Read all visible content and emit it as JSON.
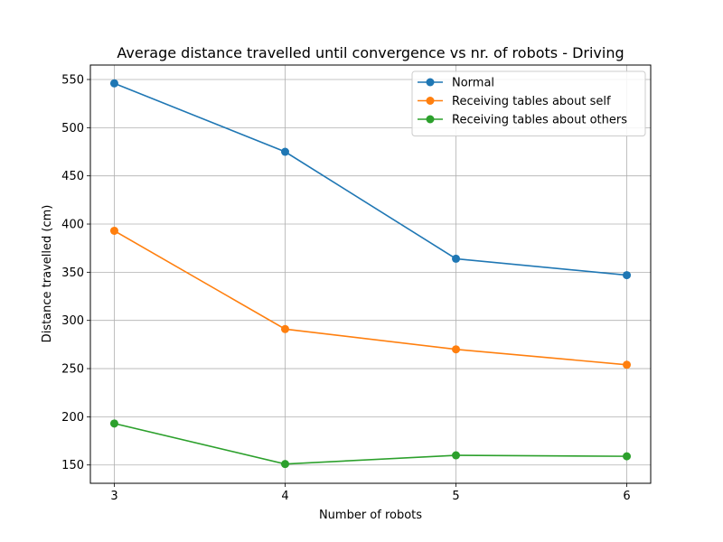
{
  "chart_data": {
    "type": "line",
    "title": "Average distance travelled until convergence vs nr. of robots - Driving",
    "xlabel": "Number of robots",
    "ylabel": "Distance travelled (cm)",
    "x": [
      3,
      4,
      5,
      6
    ],
    "xticks": [
      "3",
      "4",
      "5",
      "6"
    ],
    "yticks": [
      "150",
      "200",
      "250",
      "300",
      "350",
      "400",
      "450",
      "500",
      "550"
    ],
    "xlim": [
      2.86,
      6.14
    ],
    "ylim": [
      131,
      565
    ],
    "grid": true,
    "legend_position": "upper right",
    "series": [
      {
        "name": "Normal",
        "color": "#1f77b4",
        "values": [
          546,
          475,
          364,
          347
        ]
      },
      {
        "name": "Receiving tables about self",
        "color": "#ff7f0e",
        "values": [
          393,
          291,
          270,
          254
        ]
      },
      {
        "name": "Receiving tables about others",
        "color": "#2ca02c",
        "values": [
          193,
          151,
          160,
          159
        ]
      }
    ]
  }
}
